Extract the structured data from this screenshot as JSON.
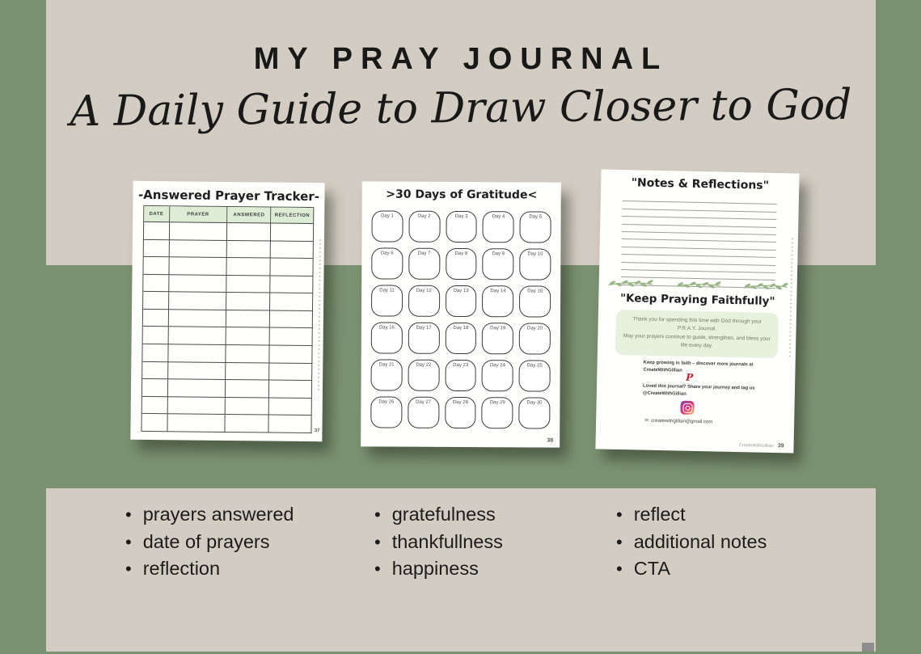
{
  "header": {
    "title": "MY PRAY JOURNAL",
    "subtitle": "A Daily Guide to Draw Closer to God"
  },
  "pages": {
    "tracker": {
      "title": "-Answered Prayer Tracker-",
      "columns": [
        "DATE",
        "PRAYER",
        "ANSWERED",
        "REFLECTION"
      ],
      "empty_rows": 12,
      "page_number": "37"
    },
    "gratitude": {
      "title": ">30 Days of Gratitude<",
      "day_prefix": "Day",
      "days": 30,
      "page_number": "38"
    },
    "notes": {
      "title": "\"Notes & Reflections\"",
      "ruled_lines": 12,
      "subheading": "\"Keep Praying Faithfully\"",
      "thank_you": {
        "line1": "Thank you for spending this time with God through your P.R.A.Y. Journal.",
        "line2": "May your prayers continue to guide, strengthen, and bless your life every day."
      },
      "pinterest_note": "Keep growing in faith – discover more journals at CreateWithGillian",
      "instagram_note": "Loved this journal? Share your journey and tag us @CreateWithGillian",
      "email": "createwithgillian@gmail.com",
      "footer_brand": "CreateWithGillian",
      "page_number": "39"
    }
  },
  "features": {
    "col1": [
      "prayers answered",
      "date of prayers",
      "reflection"
    ],
    "col2": [
      "gratefulness",
      "thankfullness",
      "happiness"
    ],
    "col3": [
      "reflect",
      "additional notes",
      "CTA"
    ]
  },
  "icons": {
    "pinterest": "P",
    "email": "✉"
  },
  "colors": {
    "background_green": "#7b9170",
    "panel_beige": "#d3ccc2",
    "table_header_green": "#ddecd5",
    "thank_box_green": "#e6f1de",
    "leaf_green": "#98b586",
    "pinterest_red": "#c0232c",
    "text_dark": "#1c1c1c"
  }
}
